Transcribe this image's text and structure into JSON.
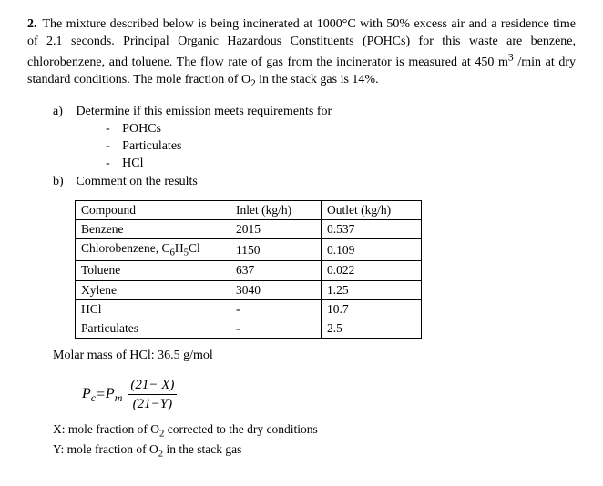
{
  "problem": {
    "number": "2.",
    "text": "The mixture described below is being incinerated at 1000°C with 50% excess air and a residence time of 2.1 seconds. Principal Organic Hazardous Constituents (POHCs) for this waste are benzene, chlorobenzene, and toluene. The flow rate of gas from the incinerator is measured at 450 m³ /min at dry standard conditions. The mole fraction of O₂ in the stack gas is 14%."
  },
  "parts": {
    "a": {
      "label": "a)",
      "text": "Determine if this emission meets requirements for",
      "items": [
        "POHCs",
        "Particulates",
        "HCl"
      ]
    },
    "b": {
      "label": "b)",
      "text": "Comment on the results"
    }
  },
  "table": {
    "headers": [
      "Compound",
      "Inlet (kg/h)",
      "Outlet (kg/h)"
    ],
    "rows": [
      [
        "Benzene",
        "2015",
        "0.537"
      ],
      [
        "Chlorobenzene, C₆H₅Cl",
        "1150",
        "0.109"
      ],
      [
        "Toluene",
        "637",
        "0.022"
      ],
      [
        "Xylene",
        "3040",
        "1.25"
      ],
      [
        "HCl",
        "-",
        "10.7"
      ],
      [
        "Particulates",
        "-",
        "2.5"
      ]
    ]
  },
  "molar_mass": "Molar mass of HCl: 36.5 g/mol",
  "equation": {
    "lhs": "P",
    "lhs_sub": "c",
    "eq": " = ",
    "rhs_base": "P",
    "rhs_sub": "m",
    "num": "(21− X)",
    "den": "(21−Y)"
  },
  "notes": {
    "x": "X: mole fraction of O₂ corrected to the dry conditions",
    "y": "Y: mole fraction of O₂ in the stack gas"
  }
}
